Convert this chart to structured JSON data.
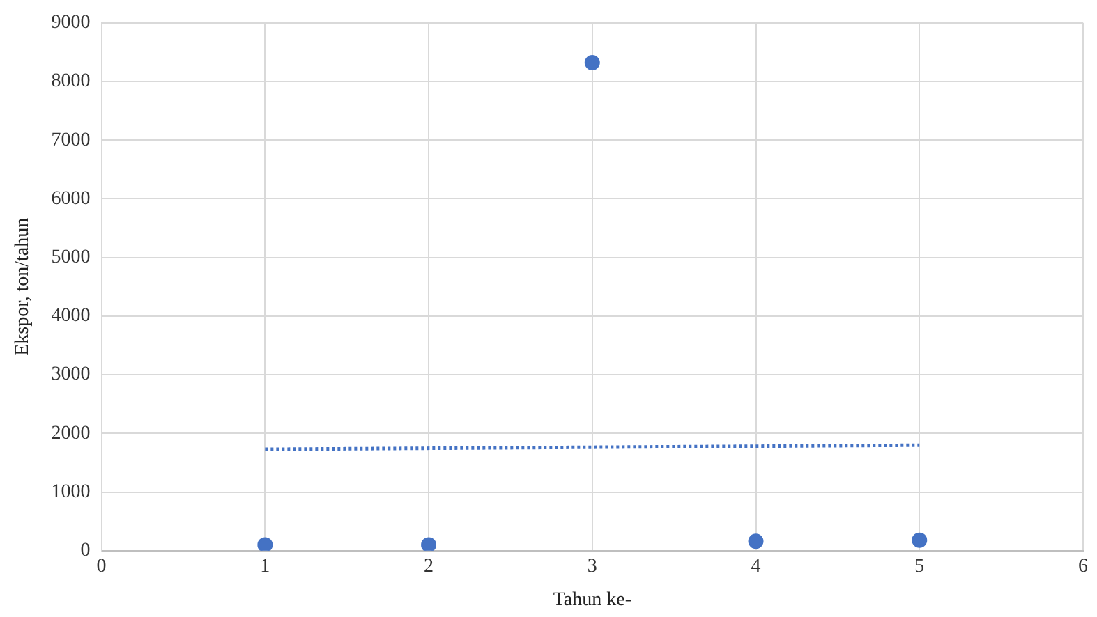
{
  "chart_data": {
    "type": "scatter",
    "xlabel": "Tahun ke-",
    "ylabel": "Ekspor, ton/tahun",
    "x": [
      1,
      2,
      3,
      4,
      5
    ],
    "series": [
      {
        "type": "scatter",
        "color": "#4472c4",
        "values": [
          100,
          100,
          8320,
          160,
          180
        ],
        "marker": "circle"
      },
      {
        "type": "line",
        "color": "#4472c4",
        "x": [
          1,
          5
        ],
        "values": [
          1730,
          1800
        ],
        "line_style": "dotted",
        "marker": "none"
      }
    ],
    "xlim": [
      0,
      6
    ],
    "xticks": [
      0,
      1,
      2,
      3,
      4,
      5,
      6
    ],
    "ylim": [
      0,
      9000
    ],
    "yticks": [
      0,
      1000,
      2000,
      3000,
      4000,
      5000,
      6000,
      7000,
      8000,
      9000
    ],
    "grid": true,
    "legend": false
  }
}
